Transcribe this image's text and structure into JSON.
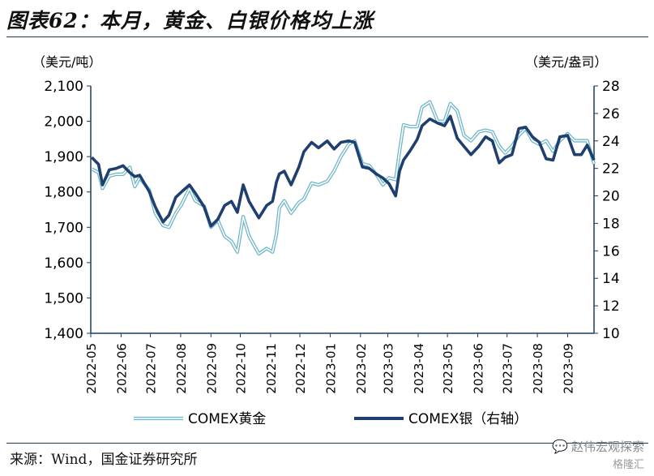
{
  "page": {
    "title": "图表62：本月，黄金、白银价格均上涨",
    "source": "来源：Wind，国金证券研究所",
    "watermark": "赵伟宏观探索",
    "watermark_sub": "格隆汇",
    "watermark_icon": "chat-bubble-icon"
  },
  "chart_data": {
    "type": "line",
    "title": "",
    "left_axis_label": "（美元/吨）",
    "right_axis_label": "（美元/盎司）",
    "ylim_left": [
      1400,
      2100
    ],
    "yticks_left": [
      1400,
      1500,
      1600,
      1700,
      1800,
      1900,
      2000,
      2100
    ],
    "ytick_labels_left": [
      "1,400",
      "1,500",
      "1,600",
      "1,700",
      "1,800",
      "1,900",
      "2,000",
      "2,100"
    ],
    "ylim_right": [
      10,
      28
    ],
    "yticks_right": [
      10,
      12,
      14,
      16,
      18,
      20,
      22,
      24,
      26,
      28
    ],
    "x_ticks": [
      "2022-05",
      "2022-06",
      "2022-07",
      "2022-08",
      "2022-09",
      "2022-10",
      "2022-11",
      "2022-12",
      "2023-01",
      "2023-02",
      "2023-03",
      "2023-04",
      "2023-05",
      "2023-06",
      "2023-07",
      "2023-08",
      "2023-09"
    ],
    "x_end": "2023-09-28",
    "grid": false,
    "legend_position": "bottom",
    "colors": {
      "gold": "#6fb7c9",
      "silver": "#1f3f6e",
      "axis": "#1b3a63"
    },
    "series": [
      {
        "name": "COMEX黄金",
        "axis": "left",
        "style": "double-line",
        "points": [
          [
            "2022-05-02",
            1865
          ],
          [
            "2022-05-09",
            1855
          ],
          [
            "2022-05-13",
            1810
          ],
          [
            "2022-05-20",
            1845
          ],
          [
            "2022-05-27",
            1850
          ],
          [
            "2022-06-03",
            1850
          ],
          [
            "2022-06-10",
            1870
          ],
          [
            "2022-06-15",
            1815
          ],
          [
            "2022-06-20",
            1840
          ],
          [
            "2022-06-30",
            1805
          ],
          [
            "2022-07-06",
            1740
          ],
          [
            "2022-07-14",
            1705
          ],
          [
            "2022-07-20",
            1700
          ],
          [
            "2022-07-27",
            1740
          ],
          [
            "2022-08-02",
            1765
          ],
          [
            "2022-08-10",
            1810
          ],
          [
            "2022-08-16",
            1775
          ],
          [
            "2022-08-25",
            1760
          ],
          [
            "2022-09-01",
            1700
          ],
          [
            "2022-09-08",
            1720
          ],
          [
            "2022-09-15",
            1675
          ],
          [
            "2022-09-22",
            1660
          ],
          [
            "2022-09-28",
            1630
          ],
          [
            "2022-10-04",
            1730
          ],
          [
            "2022-10-10",
            1675
          ],
          [
            "2022-10-20",
            1625
          ],
          [
            "2022-10-28",
            1640
          ],
          [
            "2022-11-03",
            1630
          ],
          [
            "2022-11-07",
            1680
          ],
          [
            "2022-11-10",
            1755
          ],
          [
            "2022-11-15",
            1775
          ],
          [
            "2022-11-22",
            1740
          ],
          [
            "2022-11-30",
            1770
          ],
          [
            "2022-12-05",
            1780
          ],
          [
            "2022-12-13",
            1825
          ],
          [
            "2022-12-20",
            1820
          ],
          [
            "2022-12-29",
            1830
          ],
          [
            "2023-01-05",
            1860
          ],
          [
            "2023-01-12",
            1900
          ],
          [
            "2023-01-20",
            1935
          ],
          [
            "2023-01-26",
            1945
          ],
          [
            "2023-02-03",
            1880
          ],
          [
            "2023-02-10",
            1875
          ],
          [
            "2023-02-17",
            1850
          ],
          [
            "2023-02-24",
            1820
          ],
          [
            "2023-03-02",
            1840
          ],
          [
            "2023-03-09",
            1835
          ],
          [
            "2023-03-13",
            1915
          ],
          [
            "2023-03-17",
            1990
          ],
          [
            "2023-03-24",
            1985
          ],
          [
            "2023-03-31",
            1985
          ],
          [
            "2023-04-05",
            2040
          ],
          [
            "2023-04-13",
            2055
          ],
          [
            "2023-04-21",
            2000
          ],
          [
            "2023-04-28",
            2000
          ],
          [
            "2023-05-04",
            2050
          ],
          [
            "2023-05-11",
            2030
          ],
          [
            "2023-05-18",
            1960
          ],
          [
            "2023-05-25",
            1945
          ],
          [
            "2023-06-02",
            1970
          ],
          [
            "2023-06-09",
            1975
          ],
          [
            "2023-06-16",
            1970
          ],
          [
            "2023-06-23",
            1930
          ],
          [
            "2023-06-29",
            1910
          ],
          [
            "2023-07-06",
            1930
          ],
          [
            "2023-07-13",
            1960
          ],
          [
            "2023-07-20",
            1980
          ],
          [
            "2023-07-27",
            1945
          ],
          [
            "2023-08-03",
            1935
          ],
          [
            "2023-08-10",
            1945
          ],
          [
            "2023-08-17",
            1915
          ],
          [
            "2023-08-24",
            1945
          ],
          [
            "2023-09-01",
            1965
          ],
          [
            "2023-09-08",
            1945
          ],
          [
            "2023-09-15",
            1945
          ],
          [
            "2023-09-21",
            1945
          ],
          [
            "2023-09-28",
            1880
          ]
        ]
      },
      {
        "name": "COMEX银（右轴）",
        "axis": "right",
        "style": "thick-line",
        "points": [
          [
            "2022-05-02",
            22.8
          ],
          [
            "2022-05-09",
            22.3
          ],
          [
            "2022-05-13",
            20.8
          ],
          [
            "2022-05-20",
            21.9
          ],
          [
            "2022-05-27",
            22.0
          ],
          [
            "2022-06-03",
            22.2
          ],
          [
            "2022-06-10",
            21.7
          ],
          [
            "2022-06-15",
            21.4
          ],
          [
            "2022-06-20",
            21.5
          ],
          [
            "2022-06-30",
            20.3
          ],
          [
            "2022-07-06",
            19.2
          ],
          [
            "2022-07-14",
            18.1
          ],
          [
            "2022-07-20",
            18.6
          ],
          [
            "2022-07-27",
            19.9
          ],
          [
            "2022-08-02",
            20.3
          ],
          [
            "2022-08-10",
            20.8
          ],
          [
            "2022-08-16",
            20.2
          ],
          [
            "2022-08-25",
            19.2
          ],
          [
            "2022-09-01",
            17.8
          ],
          [
            "2022-09-08",
            18.3
          ],
          [
            "2022-09-15",
            19.3
          ],
          [
            "2022-09-22",
            19.6
          ],
          [
            "2022-09-28",
            18.8
          ],
          [
            "2022-10-04",
            20.8
          ],
          [
            "2022-10-10",
            19.6
          ],
          [
            "2022-10-20",
            18.4
          ],
          [
            "2022-10-28",
            19.3
          ],
          [
            "2022-11-03",
            19.6
          ],
          [
            "2022-11-07",
            21.0
          ],
          [
            "2022-11-10",
            21.6
          ],
          [
            "2022-11-15",
            21.8
          ],
          [
            "2022-11-22",
            20.8
          ],
          [
            "2022-11-30",
            22.1
          ],
          [
            "2022-12-05",
            23.2
          ],
          [
            "2022-12-13",
            23.9
          ],
          [
            "2022-12-20",
            23.5
          ],
          [
            "2022-12-29",
            24.0
          ],
          [
            "2023-01-05",
            23.4
          ],
          [
            "2023-01-12",
            23.9
          ],
          [
            "2023-01-20",
            24.0
          ],
          [
            "2023-01-26",
            23.9
          ],
          [
            "2023-02-03",
            22.1
          ],
          [
            "2023-02-10",
            22.0
          ],
          [
            "2023-02-17",
            21.6
          ],
          [
            "2023-02-24",
            21.3
          ],
          [
            "2023-03-02",
            20.9
          ],
          [
            "2023-03-09",
            20.0
          ],
          [
            "2023-03-13",
            21.8
          ],
          [
            "2023-03-17",
            22.6
          ],
          [
            "2023-03-24",
            23.3
          ],
          [
            "2023-03-31",
            24.1
          ],
          [
            "2023-04-05",
            25.1
          ],
          [
            "2023-04-13",
            25.6
          ],
          [
            "2023-04-21",
            25.3
          ],
          [
            "2023-04-28",
            25.1
          ],
          [
            "2023-05-04",
            25.8
          ],
          [
            "2023-05-11",
            24.2
          ],
          [
            "2023-05-18",
            23.6
          ],
          [
            "2023-05-25",
            23.0
          ],
          [
            "2023-06-02",
            23.6
          ],
          [
            "2023-06-09",
            24.3
          ],
          [
            "2023-06-16",
            24.0
          ],
          [
            "2023-06-23",
            22.4
          ],
          [
            "2023-06-29",
            22.8
          ],
          [
            "2023-07-06",
            23.0
          ],
          [
            "2023-07-13",
            24.9
          ],
          [
            "2023-07-20",
            25.0
          ],
          [
            "2023-07-27",
            24.3
          ],
          [
            "2023-08-03",
            23.9
          ],
          [
            "2023-08-10",
            22.7
          ],
          [
            "2023-08-17",
            22.6
          ],
          [
            "2023-08-24",
            24.3
          ],
          [
            "2023-09-01",
            24.4
          ],
          [
            "2023-09-08",
            23.0
          ],
          [
            "2023-09-15",
            23.0
          ],
          [
            "2023-09-21",
            23.7
          ],
          [
            "2023-09-28",
            22.6
          ]
        ]
      }
    ]
  }
}
